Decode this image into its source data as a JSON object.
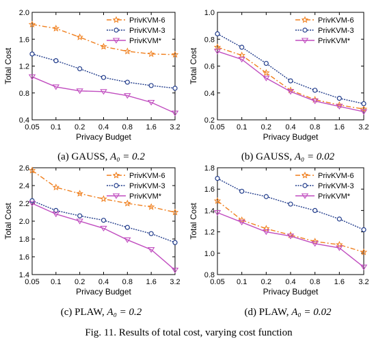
{
  "figure": {
    "caption": "Fig. 11.  Results of total cost, varying cost function"
  },
  "legend_labels": [
    "PrivKVM-6",
    "PrivKVM-3",
    "PrivKVM*"
  ],
  "colors": {
    "PrivKVM-6": "#f07f1d",
    "PrivKVM-3": "#1f3a8a",
    "PrivKVM*": "#c04cbf"
  },
  "chart_data": [
    {
      "type": "line",
      "subcaption_prefix": "(a) GAUSS, ",
      "subcaption_math": "A₀ = 0.2",
      "xlabel": "Privacy Budget",
      "ylabel": "Total Cost",
      "x": [
        "0.05",
        "0.1",
        "0.2",
        "0.4",
        "0.8",
        "1.6",
        "3.2"
      ],
      "ylim": [
        0.4,
        2.0
      ],
      "yticks": [
        "0.4",
        "0.8",
        "1.2",
        "1.6",
        "2.0"
      ],
      "legend": "top-right",
      "series": [
        {
          "name": "PrivKVM-6",
          "values": [
            1.82,
            1.76,
            1.63,
            1.49,
            1.42,
            1.38,
            1.37
          ]
        },
        {
          "name": "PrivKVM-3",
          "values": [
            1.38,
            1.28,
            1.16,
            1.03,
            0.96,
            0.91,
            0.87
          ]
        },
        {
          "name": "PrivKVM*",
          "values": [
            1.04,
            0.89,
            0.83,
            0.82,
            0.76,
            0.66,
            0.5
          ]
        }
      ]
    },
    {
      "type": "line",
      "subcaption_prefix": "(b) GAUSS, ",
      "subcaption_math": "A₀ = 0.02",
      "xlabel": "Privacy Budget",
      "ylabel": "Total Cost",
      "x": [
        "0.05",
        "0.1",
        "0.2",
        "0.4",
        "0.8",
        "1.6",
        "3.2"
      ],
      "ylim": [
        0.2,
        1.0
      ],
      "yticks": [
        "0.2",
        "0.4",
        "0.6",
        "0.8",
        "1.0"
      ],
      "legend": "top-right",
      "series": [
        {
          "name": "PrivKVM-6",
          "values": [
            0.74,
            0.68,
            0.55,
            0.42,
            0.35,
            0.31,
            0.28
          ]
        },
        {
          "name": "PrivKVM-3",
          "values": [
            0.84,
            0.74,
            0.62,
            0.49,
            0.42,
            0.36,
            0.32
          ]
        },
        {
          "name": "PrivKVM*",
          "values": [
            0.71,
            0.65,
            0.51,
            0.41,
            0.34,
            0.3,
            0.26
          ]
        }
      ]
    },
    {
      "type": "line",
      "subcaption_prefix": "(c) PLAW, ",
      "subcaption_math": "A₀ = 0.2",
      "xlabel": "Privacy Budget",
      "ylabel": "Total Cost",
      "x": [
        "0.05",
        "0.1",
        "0.2",
        "0.4",
        "0.8",
        "1.6",
        "3.2"
      ],
      "ylim": [
        1.4,
        2.6
      ],
      "yticks": [
        "1.4",
        "1.6",
        "1.8",
        "2.0",
        "2.2",
        "2.4",
        "2.6"
      ],
      "legend": "top-right",
      "series": [
        {
          "name": "PrivKVM-6",
          "values": [
            2.57,
            2.38,
            2.31,
            2.25,
            2.2,
            2.16,
            2.1
          ]
        },
        {
          "name": "PrivKVM-3",
          "values": [
            2.23,
            2.12,
            2.06,
            2.01,
            1.93,
            1.86,
            1.76
          ]
        },
        {
          "name": "PrivKVM*",
          "values": [
            2.2,
            2.08,
            2.0,
            1.92,
            1.79,
            1.68,
            1.45
          ]
        }
      ]
    },
    {
      "type": "line",
      "subcaption_prefix": "(d) PLAW, ",
      "subcaption_math": "A₀ = 0.02",
      "xlabel": "Privacy Budget",
      "ylabel": "Total Cost",
      "x": [
        "0.05",
        "0.1",
        "0.2",
        "0.4",
        "0.8",
        "1.6",
        "3.2"
      ],
      "ylim": [
        0.8,
        1.8
      ],
      "yticks": [
        "0.8",
        "1.0",
        "1.2",
        "1.4",
        "1.6",
        "1.8"
      ],
      "legend": "top-right",
      "series": [
        {
          "name": "PrivKVM-6",
          "values": [
            1.49,
            1.31,
            1.23,
            1.17,
            1.11,
            1.08,
            1.01
          ]
        },
        {
          "name": "PrivKVM-3",
          "values": [
            1.7,
            1.58,
            1.53,
            1.46,
            1.4,
            1.32,
            1.22
          ]
        },
        {
          "name": "PrivKVM*",
          "values": [
            1.38,
            1.29,
            1.2,
            1.16,
            1.09,
            1.05,
            0.87
          ]
        }
      ]
    }
  ]
}
